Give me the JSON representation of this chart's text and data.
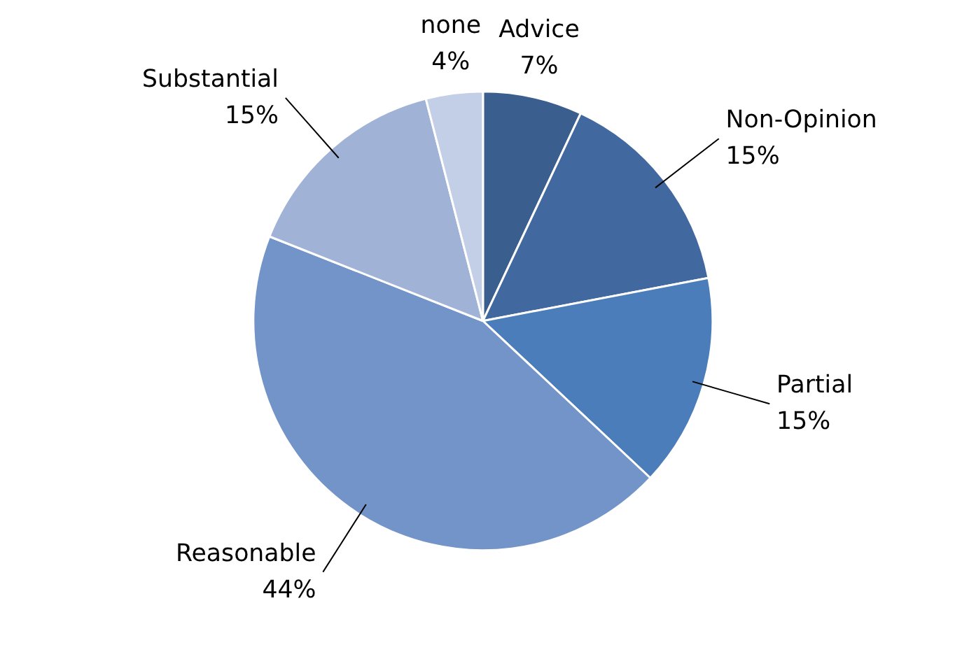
{
  "chart_data": {
    "type": "pie",
    "categories": [
      "Advice",
      "Non-Opinion",
      "Partial",
      "Reasonable",
      "Substantial",
      "none"
    ],
    "values": [
      7,
      15,
      15,
      44,
      15,
      4
    ],
    "value_labels": [
      "7%",
      "15%",
      "15%",
      "44%",
      "15%",
      "4%"
    ],
    "colors": [
      "#3a5f8f",
      "#4169a0",
      "#4a7dba",
      "#7394c8",
      "#a0b3d6",
      "#c3cfe6"
    ]
  }
}
